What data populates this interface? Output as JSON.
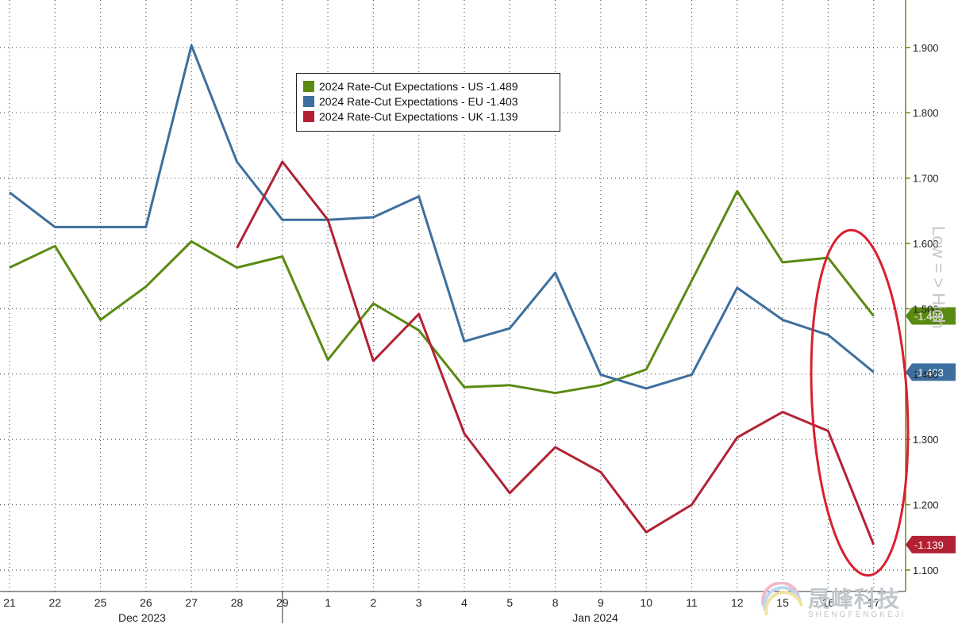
{
  "chart_data": {
    "type": "line",
    "categories": [
      "21",
      "22",
      "25",
      "26",
      "27",
      "28",
      "29",
      "1",
      "2",
      "3",
      "4",
      "5",
      "8",
      "9",
      "10",
      "11",
      "12",
      "15",
      "16",
      "17"
    ],
    "month_labels": [
      "Dec 2023",
      "Jan 2024"
    ],
    "ylim": [
      1.08,
      1.97
    ],
    "y_ticks": [
      "1.100",
      "1.200",
      "1.300",
      "1.400",
      "1.500",
      "1.600",
      "1.700",
      "1.800",
      "1.900"
    ],
    "y_axis_label": "Low = > High",
    "grid": true,
    "legend_position": "top-center",
    "series": [
      {
        "name": "2024 Rate-Cut Expectations - US  -1.489",
        "color": "#5b8a12",
        "values": [
          1.563,
          1.596,
          1.483,
          1.534,
          1.603,
          1.563,
          1.58,
          1.422,
          1.508,
          1.467,
          1.38,
          1.383,
          1.371,
          1.383,
          1.407,
          1.543,
          1.68,
          1.571,
          1.578,
          1.489
        ],
        "end_tag": "-1.489"
      },
      {
        "name": "2024 Rate-Cut Expectations - EU  -1.403",
        "color": "#3d6f9e",
        "values": [
          1.678,
          1.625,
          1.625,
          1.625,
          1.903,
          1.725,
          1.636,
          1.636,
          1.64,
          1.672,
          1.45,
          1.47,
          1.555,
          1.399,
          1.378,
          1.399,
          1.532,
          1.483,
          1.46,
          1.403
        ],
        "end_tag": "-1.403"
      },
      {
        "name": "2024 Rate-Cut Expectations - UK  -1.139",
        "color": "#b22234",
        "values": [
          null,
          null,
          null,
          null,
          null,
          1.593,
          1.725,
          1.636,
          1.42,
          1.492,
          1.309,
          1.218,
          1.288,
          1.25,
          1.158,
          1.2,
          1.303,
          1.342,
          1.313,
          1.139
        ],
        "end_tag": "-1.139"
      }
    ]
  },
  "legend": {
    "us": "2024 Rate-Cut Expectations - US  -1.489",
    "eu": "2024 Rate-Cut Expectations - EU  -1.403",
    "uk": "2024 Rate-Cut Expectations - UK  -1.139"
  },
  "watermark": {
    "cn": "晟峰科技",
    "en": "SHENGFENGKEJI"
  }
}
